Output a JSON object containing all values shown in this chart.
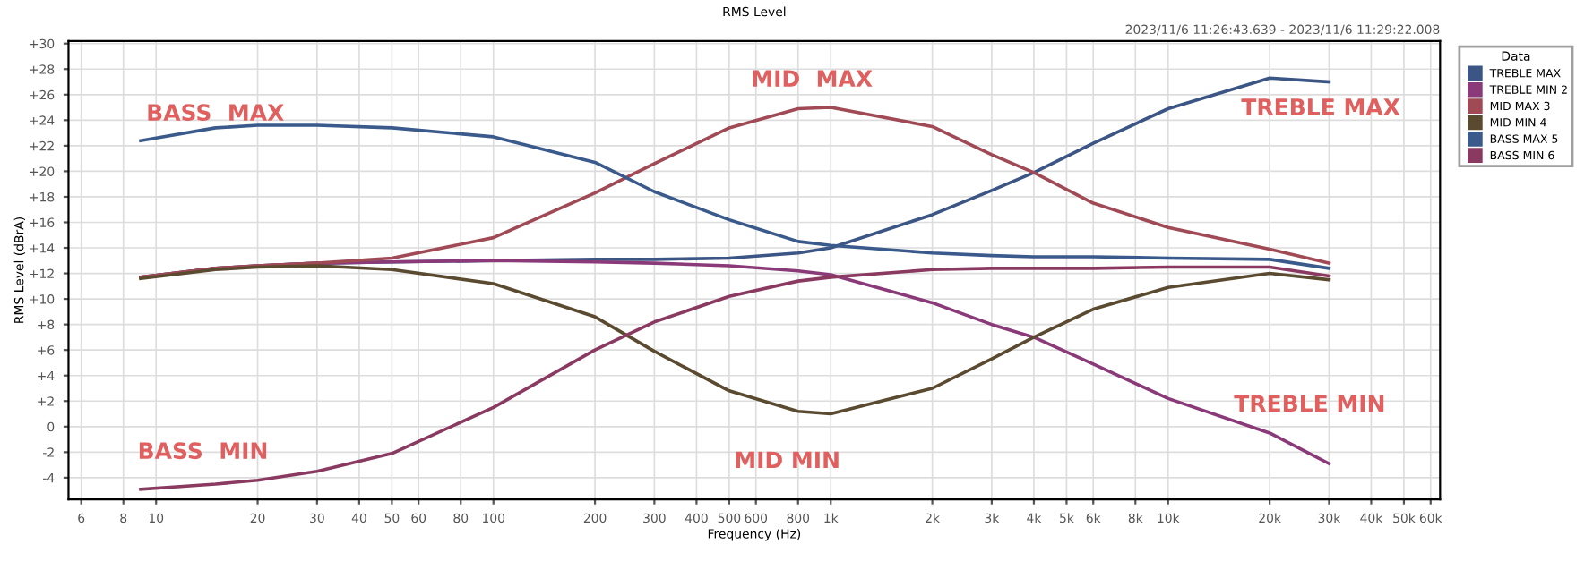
{
  "chart_data": {
    "type": "line",
    "title": "RMS Level",
    "xlabel": "Frequency (Hz)",
    "ylabel": "RMS Level (dBrA)",
    "legend_title": "Data",
    "log": "x",
    "grid": true,
    "legend": "right",
    "line_style": "solid",
    "marker": "none",
    "xlim": [
      5.5,
      64000
    ],
    "ylim": [
      -5.7,
      30.2
    ],
    "xticks": [
      6,
      8,
      10,
      20,
      30,
      40,
      50,
      60,
      80,
      100,
      200,
      300,
      400,
      500,
      600,
      800,
      {
        "value": 1000,
        "label": "1k"
      },
      {
        "value": 2000,
        "label": "2k"
      },
      {
        "value": 3000,
        "label": "3k"
      },
      {
        "value": 4000,
        "label": "4k"
      },
      {
        "value": 5000,
        "label": "5k"
      },
      {
        "value": 6000,
        "label": "6k"
      },
      {
        "value": 8000,
        "label": "8k"
      },
      {
        "value": 10000,
        "label": "10k"
      },
      {
        "value": 20000,
        "label": "20k"
      },
      {
        "value": 30000,
        "label": "30k"
      },
      {
        "value": 40000,
        "label": "40k"
      },
      {
        "value": 50000,
        "label": "50k"
      },
      {
        "value": 60000,
        "label": "60k"
      }
    ],
    "yticks": [
      {
        "value": 30,
        "label": "+30"
      },
      {
        "value": 28,
        "label": "+28"
      },
      {
        "value": 26,
        "label": "+26"
      },
      {
        "value": 24,
        "label": "+24"
      },
      {
        "value": 22,
        "label": "+22"
      },
      {
        "value": 20,
        "label": "+20"
      },
      {
        "value": 18,
        "label": "+18"
      },
      {
        "value": 16,
        "label": "+16"
      },
      {
        "value": 14,
        "label": "+14"
      },
      {
        "value": 12,
        "label": "+12"
      },
      {
        "value": 10,
        "label": "+10"
      },
      {
        "value": 8,
        "label": "+8"
      },
      {
        "value": 6,
        "label": "+6"
      },
      {
        "value": 4,
        "label": "+4"
      },
      {
        "value": 2,
        "label": "+2"
      },
      0,
      -2,
      -4
    ],
    "x": [
      9,
      15,
      20,
      30,
      50,
      100,
      200,
      300,
      500,
      800,
      1000,
      2000,
      3000,
      4000,
      6000,
      10000,
      20000,
      30000
    ],
    "series": [
      {
        "name": "TREBLE MAX",
        "color": "#3b5584",
        "values": [
          11.7,
          12.4,
          12.6,
          12.8,
          12.9,
          13.0,
          13.1,
          13.1,
          13.2,
          13.6,
          14.0,
          16.6,
          18.5,
          19.9,
          22.2,
          24.9,
          27.3,
          27.0
        ]
      },
      {
        "name": "TREBLE MIN 2",
        "color": "#8a3a78",
        "values": [
          11.7,
          12.4,
          12.6,
          12.8,
          12.9,
          13.0,
          12.9,
          12.8,
          12.6,
          12.2,
          11.9,
          9.7,
          8.0,
          7.0,
          4.9,
          2.2,
          -0.5,
          -2.9
        ]
      },
      {
        "name": "MID MAX 3",
        "color": "#a04a55",
        "values": [
          11.7,
          12.4,
          12.6,
          12.8,
          13.2,
          14.8,
          18.3,
          20.6,
          23.4,
          24.9,
          25.0,
          23.5,
          21.3,
          19.9,
          17.5,
          15.6,
          13.9,
          12.8
        ]
      },
      {
        "name": "MID MIN 4",
        "color": "#5a4a30",
        "values": [
          11.6,
          12.3,
          12.5,
          12.6,
          12.3,
          11.2,
          8.6,
          5.9,
          2.8,
          1.2,
          1.0,
          3.0,
          5.3,
          7.0,
          9.2,
          10.9,
          12.0,
          11.5
        ]
      },
      {
        "name": "BASS MAX 5",
        "color": "#3a5a8c",
        "values": [
          22.4,
          23.4,
          23.6,
          23.6,
          23.4,
          22.7,
          20.7,
          18.4,
          16.2,
          14.5,
          14.2,
          13.6,
          13.4,
          13.3,
          13.3,
          13.2,
          13.1,
          12.4
        ]
      },
      {
        "name": "BASS MIN 6",
        "color": "#8a3a60",
        "values": [
          -4.9,
          -4.5,
          -4.2,
          -3.5,
          -2.1,
          1.5,
          6.0,
          8.2,
          10.2,
          11.4,
          11.7,
          12.3,
          12.4,
          12.4,
          12.4,
          12.5,
          12.5,
          11.8
        ]
      }
    ],
    "annotations": [
      "2023/11/6 11:26:43.639 - 2023/11/6 11:29:22.008",
      "BASS  MAX",
      "MID  MAX",
      "TREBLE MAX",
      "BASS  MIN",
      "MID MIN",
      "TREBLE MIN"
    ]
  }
}
